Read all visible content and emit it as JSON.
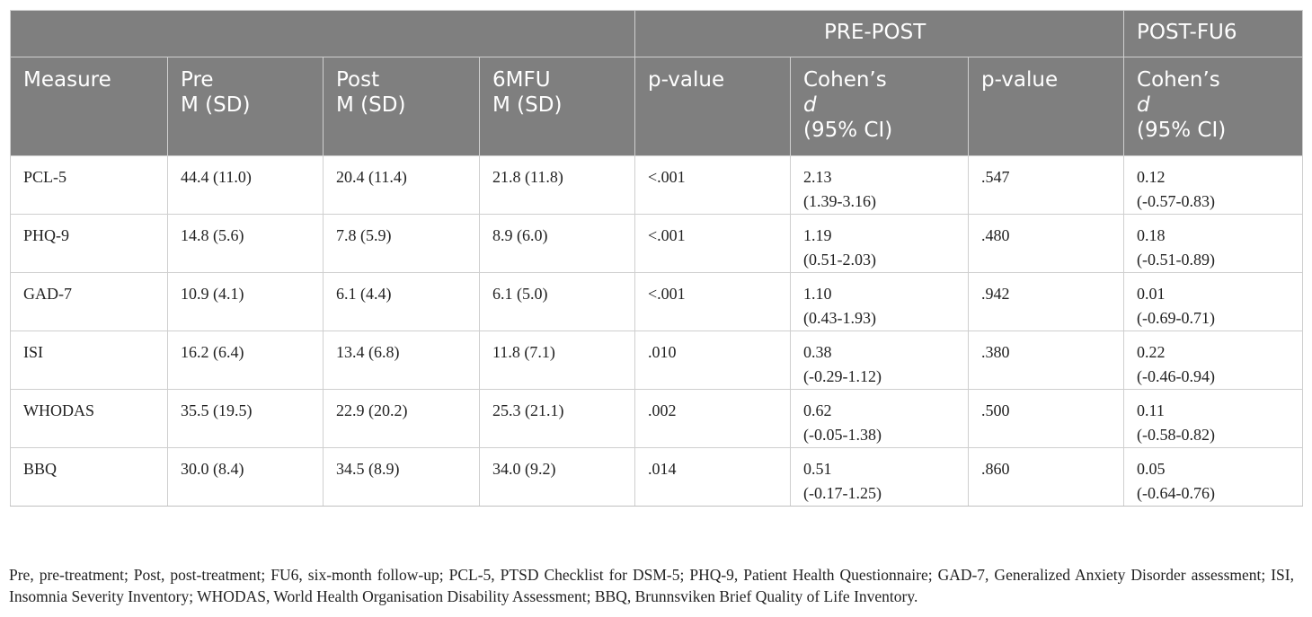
{
  "table": {
    "group_header": {
      "empty": "",
      "pre_post": "PRE-POST",
      "post_fu6": "POST-FU6"
    },
    "columns": [
      {
        "lines": [
          "Measure"
        ]
      },
      {
        "lines": [
          "Pre",
          "M (SD)"
        ]
      },
      {
        "lines": [
          "Post",
          "M (SD)"
        ]
      },
      {
        "lines": [
          "6MFU",
          "M (SD)"
        ]
      },
      {
        "lines": [
          "p-value"
        ]
      },
      {
        "lines": [
          "Cohen’s",
          "d",
          "(95% CI)"
        ]
      },
      {
        "lines": [
          "p-value"
        ]
      },
      {
        "lines": [
          "Cohen’s",
          "d",
          "(95% CI)"
        ]
      }
    ],
    "rows": [
      {
        "measure": "PCL-5",
        "pre": "44.4 (11.0)",
        "post": "20.4 (11.4)",
        "fu": "21.8 (11.8)",
        "p1": "<.001",
        "d1": "2.13",
        "ci1": "(1.39-3.16)",
        "p2": ".547",
        "d2": "0.12",
        "ci2": "(-0.57-0.83)"
      },
      {
        "measure": "PHQ-9",
        "pre": "14.8 (5.6)",
        "post": "7.8 (5.9)",
        "fu": "8.9 (6.0)",
        "p1": "<.001",
        "d1": "1.19",
        "ci1": "(0.51-2.03)",
        "p2": ".480",
        "d2": "0.18",
        "ci2": "(-0.51-0.89)"
      },
      {
        "measure": "GAD-7",
        "pre": "10.9 (4.1)",
        "post": "6.1 (4.4)",
        "fu": "6.1 (5.0)",
        "p1": "<.001",
        "d1": "1.10",
        "ci1": "(0.43-1.93)",
        "p2": ".942",
        "d2": "0.01",
        "ci2": "(-0.69-0.71)"
      },
      {
        "measure": "ISI",
        "pre": "16.2 (6.4)",
        "post": "13.4 (6.8)",
        "fu": "11.8 (7.1)",
        "p1": ".010",
        "d1": "0.38",
        "ci1": "(-0.29-1.12)",
        "p2": ".380",
        "d2": "0.22",
        "ci2": "(-0.46-0.94)"
      },
      {
        "measure": "WHODAS",
        "pre": "35.5 (19.5)",
        "post": "22.9 (20.2)",
        "fu": "25.3 (21.1)",
        "p1": ".002",
        "d1": "0.62",
        "ci1": "(-0.05-1.38)",
        "p2": ".500",
        "d2": "0.11",
        "ci2": "(-0.58-0.82)"
      },
      {
        "measure": "BBQ",
        "pre": "30.0 (8.4)",
        "post": "34.5 (8.9)",
        "fu": "34.0 (9.2)",
        "p1": ".014",
        "d1": "0.51",
        "ci1": "(-0.17-1.25)",
        "p2": ".860",
        "d2": "0.05",
        "ci2": "(-0.64-0.76)"
      }
    ]
  },
  "footnote": "Pre, pre-treatment; Post, post-treatment; FU6, six-month follow-up; PCL-5, PTSD Checklist for DSM-5; PHQ-9, Patient Health Questionnaire; GAD-7, Generalized Anxiety Disorder assessment; ISI, Insomnia Severity Inventory; WHODAS, World Health Organisation Disability Assessment; BBQ, Brunnsviken Brief Quality of Life Inventory."
}
